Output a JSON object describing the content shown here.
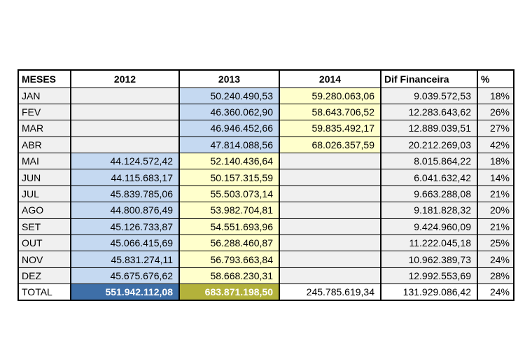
{
  "colors": {
    "blue": "#C5D9F1",
    "yellow": "#FFFFCC",
    "row_gray": "#F0F0F0",
    "total_blue": "#3E6FA8",
    "total_olive": "#B3B23B"
  },
  "table": {
    "columns": [
      {
        "key": "month",
        "label": "MESES"
      },
      {
        "key": "y2012",
        "label": "2012"
      },
      {
        "key": "y2013",
        "label": "2013"
      },
      {
        "key": "y2014",
        "label": "2014"
      },
      {
        "key": "dif",
        "label": "Dif Financeira"
      },
      {
        "key": "pct",
        "label": "%"
      }
    ],
    "rows": [
      {
        "month": "JAN",
        "y2012": "",
        "y2013": "50.240.490,53",
        "y2014": "59.280.063,06",
        "dif": "9.039.572,53",
        "pct": "18%",
        "hl": {
          "blue": "y2013",
          "yellow": "y2014"
        }
      },
      {
        "month": "FEV",
        "y2012": "",
        "y2013": "46.360.062,90",
        "y2014": "58.643.706,52",
        "dif": "12.283.643,62",
        "pct": "26%",
        "hl": {
          "blue": "y2013",
          "yellow": "y2014"
        }
      },
      {
        "month": "MAR",
        "y2012": "",
        "y2013": "46.946.452,66",
        "y2014": "59.835.492,17",
        "dif": "12.889.039,51",
        "pct": "27%",
        "hl": {
          "blue": "y2013",
          "yellow": "y2014"
        }
      },
      {
        "month": "ABR",
        "y2012": "",
        "y2013": "47.814.088,56",
        "y2014": "68.026.357,59",
        "dif": "20.212.269,03",
        "pct": "42%",
        "hl": {
          "blue": "y2013",
          "yellow": "y2014"
        }
      },
      {
        "month": "MAI",
        "y2012": "44.124.572,42",
        "y2013": "52.140.436,64",
        "y2014": "",
        "dif": "8.015.864,22",
        "pct": "18%",
        "hl": {
          "blue": "y2012",
          "yellow": "y2013"
        }
      },
      {
        "month": "JUN",
        "y2012": "44.115.683,17",
        "y2013": "50.157.315,59",
        "y2014": "",
        "dif": "6.041.632,42",
        "pct": "14%",
        "hl": {
          "blue": "y2012",
          "yellow": "y2013"
        }
      },
      {
        "month": "JUL",
        "y2012": "45.839.785,06",
        "y2013": "55.503.073,14",
        "y2014": "",
        "dif": "9.663.288,08",
        "pct": "21%",
        "hl": {
          "blue": "y2012",
          "yellow": "y2013"
        }
      },
      {
        "month": "AGO",
        "y2012": "44.800.876,49",
        "y2013": "53.982.704,81",
        "y2014": "",
        "dif": "9.181.828,32",
        "pct": "20%",
        "hl": {
          "blue": "y2012",
          "yellow": "y2013"
        }
      },
      {
        "month": "SET",
        "y2012": "45.126.733,87",
        "y2013": "54.551.693,96",
        "y2014": "",
        "dif": "9.424.960,09",
        "pct": "21%",
        "hl": {
          "blue": "y2012",
          "yellow": "y2013"
        }
      },
      {
        "month": "OUT",
        "y2012": "45.066.415,69",
        "y2013": "56.288.460,87",
        "y2014": "",
        "dif": "11.222.045,18",
        "pct": "25%",
        "hl": {
          "blue": "y2012",
          "yellow": "y2013"
        }
      },
      {
        "month": "NOV",
        "y2012": "45.831.274,11",
        "y2013": "56.793.663,84",
        "y2014": "",
        "dif": "10.962.389,73",
        "pct": "24%",
        "hl": {
          "blue": "y2012",
          "yellow": "y2013"
        }
      },
      {
        "month": "DEZ",
        "y2012": "45.675.676,62",
        "y2013": "58.668.230,31",
        "y2014": "",
        "dif": "12.992.553,69",
        "pct": "28%",
        "hl": {
          "blue": "y2012",
          "yellow": "y2013"
        }
      }
    ],
    "total": {
      "month": "TOTAL",
      "y2012": "551.942.112,08",
      "y2013": "683.871.198,50",
      "y2014": "245.785.619,34",
      "dif": "131.929.086,42",
      "pct": "24%",
      "hl": {
        "blue": "y2012",
        "yellow": "y2013"
      }
    }
  }
}
